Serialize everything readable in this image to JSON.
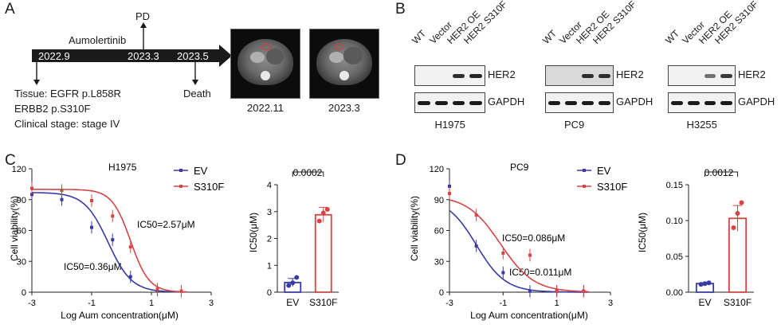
{
  "panel_letters": [
    "A",
    "B",
    "C",
    "D"
  ],
  "panelA": {
    "timeline_dates": [
      "2022.9",
      "2023.3",
      "2023.5"
    ],
    "treatment": "Aumolertinib",
    "pd_label": "PD",
    "death_label": "Death",
    "tissue_lines": [
      "Tissue: EGFR p.L858R",
      "ERBB2 p.S310F",
      "Clinical stage: stage IV"
    ],
    "ct_dates": [
      "2022.11",
      "2023.3"
    ],
    "colors": {
      "timeline": "#1a1a1a",
      "ct_mark": "#d83a3a"
    }
  },
  "panelB": {
    "lane_labels": [
      "WT",
      "Vector",
      "HER2 OE",
      "HER2 S310F"
    ],
    "proteins": [
      "HER2",
      "GAPDH"
    ],
    "cell_lines": [
      "H1975",
      "PC9",
      "H3255"
    ],
    "her2_band_intensity": [
      [
        0.0,
        0.0,
        0.9,
        0.95
      ],
      [
        0.0,
        0.0,
        0.9,
        0.9
      ],
      [
        0.0,
        0.0,
        0.6,
        0.85
      ]
    ]
  },
  "chart_data": [
    {
      "type": "line",
      "title": "H1975",
      "xlabel": "Log Aum concentration(μM)",
      "ylabel": "Cell viability(%)",
      "xlim": [
        -3,
        3
      ],
      "ylim": [
        0,
        120
      ],
      "xticks": [
        -3,
        -1,
        1,
        3
      ],
      "yticks": [
        0,
        30,
        60,
        90,
        120
      ],
      "series": [
        {
          "name": "EV",
          "color": "#3a3aa6",
          "points": [
            [
              -3,
              95
            ],
            [
              -2,
              90
            ],
            [
              -1,
              63
            ],
            [
              -0.3,
              51
            ],
            [
              0.3,
              15
            ],
            [
              1.2,
              2
            ],
            [
              2,
              1
            ]
          ]
        },
        {
          "name": "S310F",
          "color": "#d64545",
          "points": [
            [
              -3,
              101
            ],
            [
              -2,
              99
            ],
            [
              -1,
              89
            ],
            [
              -0.3,
              74
            ],
            [
              0.3,
              44
            ],
            [
              1.2,
              3
            ],
            [
              2,
              1
            ]
          ]
        }
      ],
      "annotations": [
        "IC50=2.57μM",
        "IC50=0.36μM"
      ]
    },
    {
      "type": "bar",
      "categories": [
        "EV",
        "S310F"
      ],
      "values": [
        0.36,
        2.88
      ],
      "errors": [
        0.15,
        0.28
      ],
      "points": [
        [
          0.25,
          0.35,
          0.55
        ],
        [
          2.65,
          2.95,
          3.08
        ]
      ],
      "colors": [
        "#3a3aa6",
        "#d64545"
      ],
      "ylabel": "IC50(μM)",
      "ylim": [
        0,
        4
      ],
      "yticks": [
        0,
        1,
        2,
        3,
        4
      ],
      "significance": "0.0002"
    },
    {
      "type": "line",
      "title": "PC9",
      "xlabel": "Log Aum concentration(μM)",
      "ylabel": "Cell viability(%)",
      "xlim": [
        -3,
        3
      ],
      "ylim": [
        0,
        120
      ],
      "xticks": [
        -3,
        -1,
        1,
        3
      ],
      "yticks": [
        0,
        30,
        60,
        90,
        120
      ],
      "series": [
        {
          "name": "EV",
          "color": "#3a3aa6",
          "points": [
            [
              -3,
              103
            ],
            [
              -2,
              45
            ],
            [
              -1,
              19
            ],
            [
              0,
              1
            ],
            [
              1,
              1
            ],
            [
              2,
              1
            ]
          ]
        },
        {
          "name": "S310F",
          "color": "#d64545",
          "points": [
            [
              -3,
              96
            ],
            [
              -2,
              75
            ],
            [
              -1,
              38
            ],
            [
              0,
              36
            ],
            [
              1,
              1
            ],
            [
              2,
              1
            ]
          ]
        }
      ],
      "annotations": [
        "IC50=0.086μM",
        "IC50=0.011μM"
      ]
    },
    {
      "type": "bar",
      "categories": [
        "EV",
        "S310F"
      ],
      "values": [
        0.012,
        0.103
      ],
      "errors": [
        0.001,
        0.018
      ],
      "points": [
        [
          0.011,
          0.012,
          0.013
        ],
        [
          0.09,
          0.11,
          0.125
        ]
      ],
      "colors": [
        "#3a3aa6",
        "#d64545"
      ],
      "ylabel": "IC50(μM)",
      "ylim": [
        0,
        0.15
      ],
      "yticks": [
        0.0,
        0.05,
        0.1,
        0.15
      ],
      "yticklabels": [
        "0.00",
        "0.05",
        "0.10",
        "0.15"
      ],
      "significance": "0.0012"
    }
  ]
}
